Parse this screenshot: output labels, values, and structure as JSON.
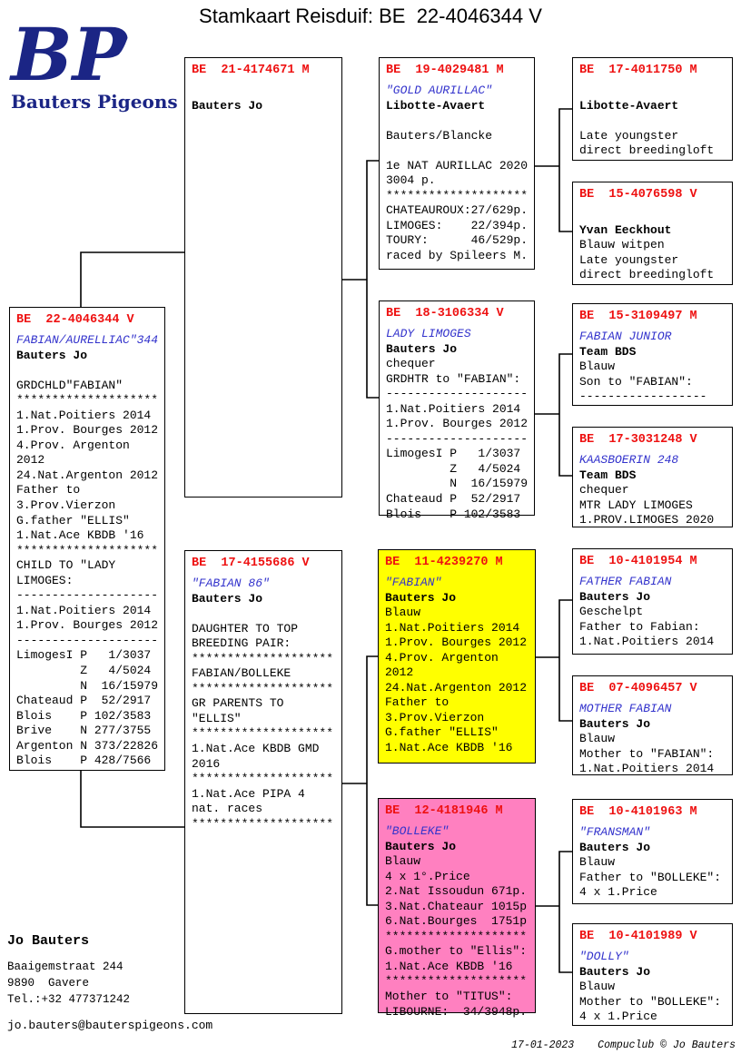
{
  "title": "Stamkaart Reisduif: BE  22-4046344 V",
  "logo": {
    "initials": "BP",
    "name": "Bauters Pigeons",
    "pigeon_icon": "white-pigeon-silhouette"
  },
  "colors": {
    "ring_red": "#ee1111",
    "name_blue": "#3333cc",
    "logo_navy": "#1b2585",
    "highlight_yellow": "#ffff00",
    "highlight_pink": "#ff80c0"
  },
  "boxes": [
    {
      "id": "subject",
      "ring": "BE  22-4046344 V",
      "lines": [
        [
          "FABIAN/AURELLIAC\"344",
          "name"
        ],
        [
          "Bauters Jo",
          "owner"
        ],
        [
          "",
          ""
        ],
        [
          "GRDCHLD\"FABIAN\"",
          ""
        ],
        [
          "********************",
          ""
        ],
        [
          "1.Nat.Poitiers 2014",
          ""
        ],
        [
          "1.Prov. Bourges 2012",
          ""
        ],
        [
          "4.Prov. Argenton",
          ""
        ],
        [
          "2012",
          ""
        ],
        [
          "24.Nat.Argenton 2012",
          ""
        ],
        [
          "Father to",
          ""
        ],
        [
          "3.Prov.Vierzon",
          ""
        ],
        [
          "G.father \"ELLIS\"",
          ""
        ],
        [
          "1.Nat.Ace KBDB '16",
          ""
        ],
        [
          "********************",
          ""
        ],
        [
          "CHILD TO \"LADY",
          ""
        ],
        [
          "LIMOGES:",
          ""
        ],
        [
          "--------------------",
          ""
        ],
        [
          "1.Nat.Poitiers 2014",
          ""
        ],
        [
          "1.Prov. Bourges 2012",
          ""
        ],
        [
          "--------------------",
          ""
        ],
        [
          "LimogesI P   1/3037",
          ""
        ],
        [
          "         Z   4/5024",
          ""
        ],
        [
          "         N  16/15979",
          ""
        ],
        [
          "Chateaud P  52/2917",
          ""
        ],
        [
          "Blois    P 102/3583",
          ""
        ],
        [
          "Brive    N 277/3755",
          ""
        ],
        [
          "Argenton N 373/22826",
          ""
        ],
        [
          "Blois    P 428/7566",
          ""
        ]
      ]
    },
    {
      "id": "father",
      "ring": "BE  21-4174671 M",
      "lines": [
        [
          "",
          ""
        ],
        [
          "Bauters Jo",
          "owner"
        ]
      ]
    },
    {
      "id": "mother",
      "ring": "BE  17-4155686 V",
      "lines": [
        [
          "\"FABIAN 86\"",
          "name"
        ],
        [
          "Bauters Jo",
          "owner"
        ],
        [
          "",
          ""
        ],
        [
          "DAUGHTER TO TOP",
          ""
        ],
        [
          "BREEDING PAIR:",
          ""
        ],
        [
          "********************",
          ""
        ],
        [
          "FABIAN/BOLLEKE",
          ""
        ],
        [
          "********************",
          ""
        ],
        [
          "GR PARENTS TO",
          ""
        ],
        [
          "\"ELLIS\"",
          ""
        ],
        [
          "********************",
          ""
        ],
        [
          "1.Nat.Ace KBDB GMD",
          ""
        ],
        [
          "2016",
          ""
        ],
        [
          "********************",
          ""
        ],
        [
          "1.Nat.Ace PIPA 4",
          ""
        ],
        [
          "nat. races",
          ""
        ],
        [
          "********************",
          ""
        ]
      ]
    },
    {
      "id": "gf_p",
      "ring": "BE  19-4029481 M",
      "lines": [
        [
          "\"GOLD AURILLAC\"",
          "name"
        ],
        [
          "Libotte-Avaert",
          "owner"
        ],
        [
          "",
          ""
        ],
        [
          "Bauters/Blancke",
          ""
        ],
        [
          "",
          ""
        ],
        [
          "1e NAT AURILLAC 2020",
          ""
        ],
        [
          "3004 p.",
          ""
        ],
        [
          "********************",
          ""
        ],
        [
          "CHATEAUROUX:27/629p.",
          ""
        ],
        [
          "LIMOGES:    22/394p.",
          ""
        ],
        [
          "TOURY:      46/529p.",
          ""
        ],
        [
          "raced by Spileers M.",
          ""
        ]
      ]
    },
    {
      "id": "gm_p",
      "ring": "BE  18-3106334 V",
      "lines": [
        [
          "LADY LIMOGES",
          "name"
        ],
        [
          "Bauters Jo",
          "owner"
        ],
        [
          "chequer",
          ""
        ],
        [
          "GRDHTR to \"FABIAN\":",
          ""
        ],
        [
          "--------------------",
          ""
        ],
        [
          "1.Nat.Poitiers 2014",
          ""
        ],
        [
          "1.Prov. Bourges 2012",
          ""
        ],
        [
          "--------------------",
          ""
        ],
        [
          "LimogesI P   1/3037",
          ""
        ],
        [
          "         Z   4/5024",
          ""
        ],
        [
          "         N  16/15979",
          ""
        ],
        [
          "Chateaud P  52/2917",
          ""
        ],
        [
          "Blois    P 102/3583",
          ""
        ]
      ]
    },
    {
      "id": "gf_m",
      "ring": "BE  11-4239270 M",
      "highlight": "#ffff00",
      "lines": [
        [
          "\"FABIAN\"",
          "name"
        ],
        [
          "Bauters Jo",
          "owner"
        ],
        [
          "Blauw",
          ""
        ],
        [
          "1.Nat.Poitiers 2014",
          ""
        ],
        [
          "1.Prov. Bourges 2012",
          ""
        ],
        [
          "4.Prov. Argenton",
          ""
        ],
        [
          "2012",
          ""
        ],
        [
          "24.Nat.Argenton 2012",
          ""
        ],
        [
          "Father to",
          ""
        ],
        [
          "3.Prov.Vierzon",
          ""
        ],
        [
          "G.father \"ELLIS\"",
          ""
        ],
        [
          "1.Nat.Ace KBDB '16",
          ""
        ]
      ]
    },
    {
      "id": "gm_m",
      "ring": "BE  12-4181946 M",
      "highlight": "#ff80c0",
      "lines": [
        [
          "\"BOLLEKE\"",
          "name"
        ],
        [
          "Bauters Jo",
          "owner"
        ],
        [
          "Blauw",
          ""
        ],
        [
          "4 x 1°.Price",
          ""
        ],
        [
          "2.Nat Issoudun 671p.",
          ""
        ],
        [
          "3.Nat.Chateaur 1015p",
          ""
        ],
        [
          "6.Nat.Bourges  1751p",
          ""
        ],
        [
          "********************",
          ""
        ],
        [
          "G.mother to \"Ellis\":",
          ""
        ],
        [
          "1.Nat.Ace KBDB '16",
          ""
        ],
        [
          "********************",
          ""
        ],
        [
          "Mother to \"TITUS\":",
          ""
        ],
        [
          "LIBOURNE:  34/3948p.",
          ""
        ]
      ]
    },
    {
      "id": "ggf_pp",
      "ring": "BE  17-4011750 M",
      "lines": [
        [
          "",
          ""
        ],
        [
          "Libotte-Avaert",
          "owner"
        ],
        [
          "",
          ""
        ],
        [
          "Late youngster",
          ""
        ],
        [
          "direct breedingloft",
          ""
        ]
      ]
    },
    {
      "id": "ggm_pp",
      "ring": "BE  15-4076598 V",
      "lines": [
        [
          "",
          ""
        ],
        [
          "Yvan Eeckhout",
          "owner"
        ],
        [
          "Blauw witpen",
          ""
        ],
        [
          "Late youngster",
          ""
        ],
        [
          "direct breedingloft",
          ""
        ]
      ]
    },
    {
      "id": "ggf_pm",
      "ring": "BE  15-3109497 M",
      "lines": [
        [
          "FABIAN JUNIOR",
          "name"
        ],
        [
          "Team BDS",
          "owner"
        ],
        [
          "Blauw",
          ""
        ],
        [
          "Son to \"FABIAN\":",
          ""
        ],
        [
          "------------------",
          ""
        ]
      ]
    },
    {
      "id": "ggm_pm",
      "ring": "BE  17-3031248 V",
      "lines": [
        [
          "KAASBOERIN 248",
          "name"
        ],
        [
          "Team BDS",
          "owner"
        ],
        [
          "chequer",
          ""
        ],
        [
          "MTR LADY LIMOGES",
          ""
        ],
        [
          "1.PROV.LIMOGES 2020",
          ""
        ]
      ]
    },
    {
      "id": "ggf_mp",
      "ring": "BE  10-4101954 M",
      "lines": [
        [
          "FATHER FABIAN",
          "name"
        ],
        [
          "Bauters Jo",
          "owner"
        ],
        [
          "Geschelpt",
          ""
        ],
        [
          "Father to Fabian:",
          ""
        ],
        [
          "1.Nat.Poitiers 2014",
          ""
        ]
      ]
    },
    {
      "id": "ggm_mp",
      "ring": "BE  07-4096457 V",
      "lines": [
        [
          "MOTHER FABIAN",
          "name"
        ],
        [
          "Bauters Jo",
          "owner"
        ],
        [
          "Blauw",
          ""
        ],
        [
          "Mother to \"FABIAN\":",
          ""
        ],
        [
          "1.Nat.Poitiers 2014",
          ""
        ]
      ]
    },
    {
      "id": "ggf_mm",
      "ring": "BE  10-4101963 M",
      "lines": [
        [
          "\"FRANSMAN\"",
          "name"
        ],
        [
          "Bauters Jo",
          "owner"
        ],
        [
          "Blauw",
          ""
        ],
        [
          "Father to \"BOLLEKE\":",
          ""
        ],
        [
          "4 x 1.Price",
          ""
        ]
      ]
    },
    {
      "id": "ggm_mm",
      "ring": "BE  10-4101989 V",
      "lines": [
        [
          "\"DOLLY\"",
          "name"
        ],
        [
          "Bauters Jo",
          "owner"
        ],
        [
          "Blauw",
          ""
        ],
        [
          "Mother to \"BOLLEKE\":",
          ""
        ],
        [
          "4 x 1.Price",
          ""
        ]
      ]
    }
  ],
  "contact": {
    "name": "Jo Bauters",
    "address": "Baaigemstraat 244",
    "city": "9890  Gavere",
    "phone": "Tel.:+32 477371242",
    "email": "jo.bauters@bauterspigeons.com"
  },
  "footer": {
    "date": "17-01-2023",
    "attribution": "Compuclub © Jo Bauters"
  }
}
